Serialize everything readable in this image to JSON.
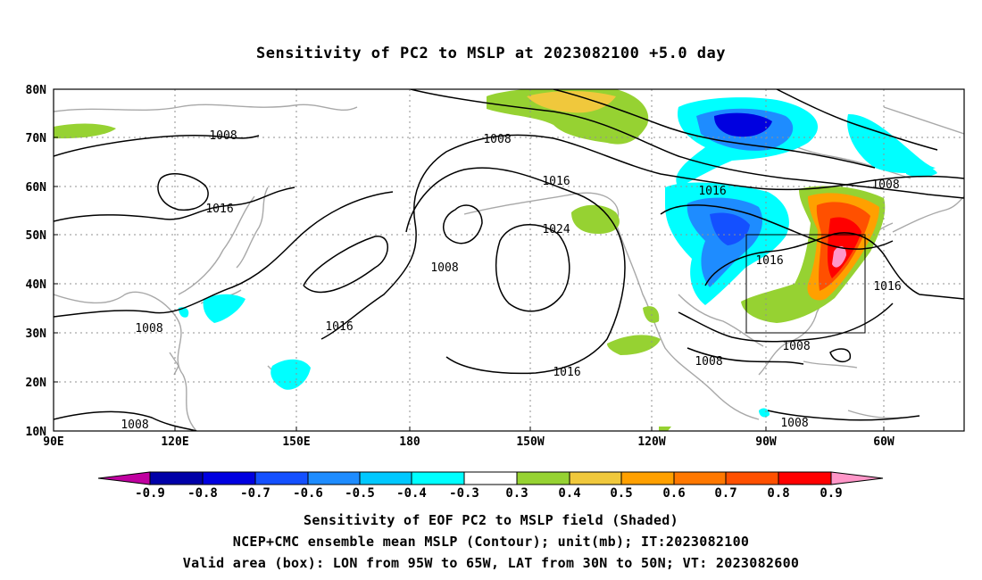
{
  "title": "Sensitivity of PC2 to MSLP at 2023082100 +5.0 day",
  "map": {
    "lat_labels": [
      "80N",
      "70N",
      "60N",
      "50N",
      "40N",
      "30N",
      "20N",
      "10N"
    ],
    "lon_labels": [
      "90E",
      "120E",
      "150E",
      "180",
      "150W",
      "120W",
      "90W",
      "60W"
    ],
    "contour_labels": [
      "1008",
      "1008",
      "1016",
      "1016",
      "1008",
      "1024",
      "1008",
      "1016",
      "1016",
      "1016",
      "1016",
      "1008",
      "1008",
      "1008",
      "1008",
      "1008",
      "1016"
    ],
    "valid_box": {
      "lon_min": "95W",
      "lon_max": "65W",
      "lat_min": "30N",
      "lat_max": "50N"
    },
    "colors": {
      "neg_09": "#c000a0",
      "neg_08": "#0000a8",
      "neg_07": "#0000e0",
      "neg_06": "#1450ff",
      "neg_05": "#1e8cff",
      "neg_04": "#00c8ff",
      "neg_03": "#00ffff",
      "neutral": "#ffffff",
      "pos_03": "#96d232",
      "pos_04": "#f0c83c",
      "pos_05": "#ffa000",
      "pos_06": "#ff7800",
      "pos_07": "#ff5000",
      "pos_08": "#ff1e00",
      "pos_09": "#ff0000",
      "pos_max": "#ff96c8",
      "land": "#a0a0a0"
    }
  },
  "colorbar": {
    "labels": [
      "-0.9",
      "-0.8",
      "-0.7",
      "-0.6",
      "-0.5",
      "-0.4",
      "-0.3",
      "0.3",
      "0.4",
      "0.5",
      "0.6",
      "0.7",
      "0.8",
      "0.9"
    ]
  },
  "caption": {
    "line1": "Sensitivity of EOF PC2 to MSLP field (Shaded)",
    "line2": "NCEP+CMC ensemble mean MSLP (Contour); unit(mb); IT:2023082100",
    "line3": "Valid area (box): LON from 95W to 65W, LAT from 30N to 50N; VT: 2023082600"
  }
}
